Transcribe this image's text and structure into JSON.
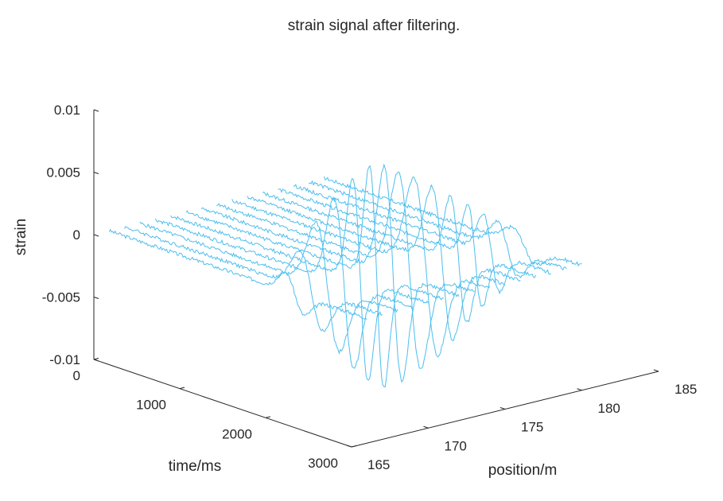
{
  "chart_data": {
    "type": "line",
    "subtype": "3d-waterfall",
    "title": "strain signal after filtering.",
    "xlabel": "position/m",
    "ylabel": "time/ms",
    "zlabel": "strain",
    "xlim": [
      165,
      185
    ],
    "ylim": [
      0,
      3000
    ],
    "zlim": [
      -0.01,
      0.01
    ],
    "x_ticks": [
      "165",
      "170",
      "175",
      "180",
      "185"
    ],
    "y_ticks": [
      "0",
      "1000",
      "2000",
      "3000"
    ],
    "z_ticks": [
      "-0.01",
      "-0.005",
      "0",
      "0.005",
      "0.01"
    ],
    "grid": false,
    "series_color": "#4dbeee",
    "signal": {
      "peak_time_ms": 2250,
      "pulse_width_ms": 110,
      "max_positive": 0.0095,
      "max_negative": -0.0085
    },
    "series": [
      {
        "position": 166,
        "amplitude": 0.0015,
        "noise": 0.00015
      },
      {
        "position": 167,
        "amplitude": 0.003,
        "noise": 0.00015
      },
      {
        "position": 168,
        "amplitude": 0.005,
        "noise": 0.00015
      },
      {
        "position": 169,
        "amplitude": 0.0068,
        "noise": 0.00015
      },
      {
        "position": 170,
        "amplitude": 0.0082,
        "noise": 0.00015
      },
      {
        "position": 171,
        "amplitude": 0.009,
        "noise": 0.00015
      },
      {
        "position": 172,
        "amplitude": 0.0086,
        "noise": 0.00015
      },
      {
        "position": 173,
        "amplitude": 0.0078,
        "noise": 0.00015
      },
      {
        "position": 174,
        "amplitude": 0.007,
        "noise": 0.00015
      },
      {
        "position": 175,
        "amplitude": 0.006,
        "noise": 0.00015
      },
      {
        "position": 176,
        "amplitude": 0.005,
        "noise": 0.00015
      },
      {
        "position": 177,
        "amplitude": 0.004,
        "noise": 0.00015
      },
      {
        "position": 178,
        "amplitude": 0.003,
        "noise": 0.00015
      },
      {
        "position": 179,
        "amplitude": 0.002,
        "noise": 0.00015
      },
      {
        "position": 180,
        "amplitude": 0.0012,
        "noise": 0.00015
      }
    ]
  }
}
